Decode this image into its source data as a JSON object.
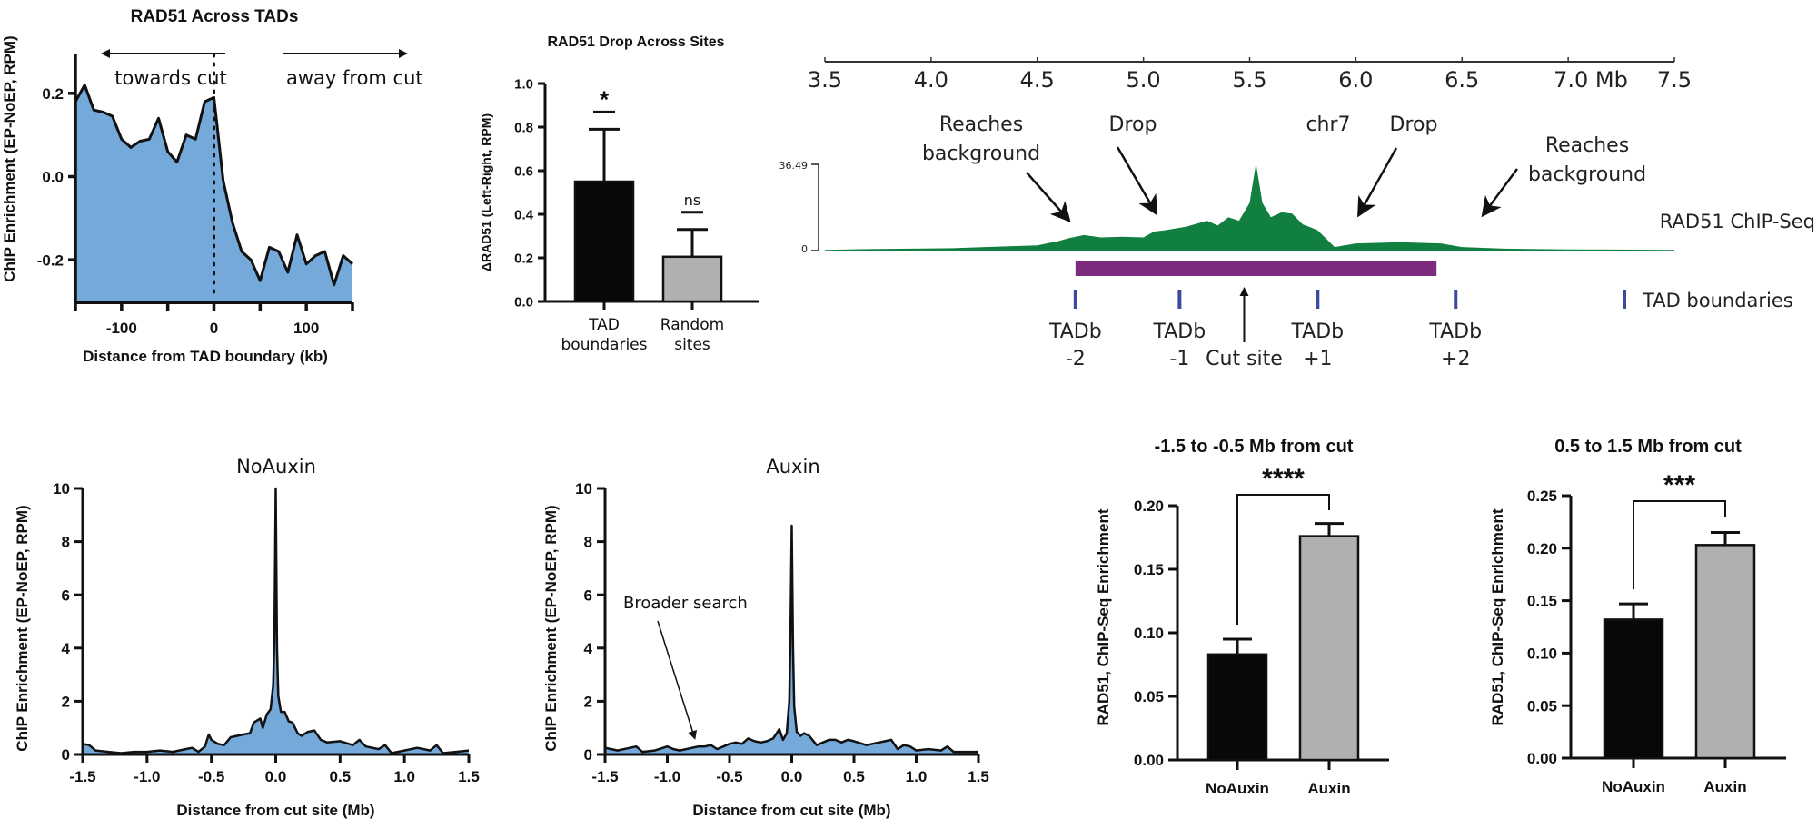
{
  "colors": {
    "area_fill": "#74a9da",
    "line": "#111111",
    "bar_dark": "#060809",
    "bar_gray": "#b0b0b2",
    "track_green": "#117f3f",
    "cut_region": "#7b2a7e",
    "tad_boundary": "#3b4a9c"
  },
  "chart_data": [
    {
      "id": "tad_profile",
      "type": "area",
      "title": "RAD51 Across TADs",
      "xlabel": "Distance from TAD boundary (kb)",
      "ylabel": "ChIP Enrichment (EP-NoEP, RPM)",
      "xlim": [
        -150,
        150
      ],
      "ylim": [
        -0.3,
        0.3
      ],
      "xticks": [
        -100,
        0,
        100
      ],
      "xtick_labels": [
        "-100",
        "0",
        "100"
      ],
      "yticks": [
        -0.2,
        0.0,
        0.2
      ],
      "ytick_labels": [
        "-0.2",
        "0.0",
        "0.2"
      ],
      "annotations": {
        "left_arrow": "towards cut",
        "right_arrow": "away from cut",
        "vline_x": 0
      },
      "x": [
        -150,
        -140,
        -130,
        -120,
        -110,
        -100,
        -90,
        -80,
        -70,
        -60,
        -50,
        -40,
        -30,
        -20,
        -10,
        0,
        10,
        20,
        30,
        40,
        50,
        60,
        70,
        80,
        90,
        100,
        110,
        120,
        130,
        140,
        150
      ],
      "y": [
        0.18,
        0.22,
        0.16,
        0.155,
        0.145,
        0.09,
        0.07,
        0.085,
        0.09,
        0.14,
        0.06,
        0.035,
        0.1,
        0.09,
        0.18,
        0.19,
        -0.01,
        -0.11,
        -0.18,
        -0.2,
        -0.25,
        -0.17,
        -0.18,
        -0.23,
        -0.14,
        -0.21,
        -0.19,
        -0.18,
        -0.26,
        -0.19,
        -0.21
      ]
    },
    {
      "id": "drop_across_sites",
      "type": "bar",
      "title": "RAD51 Drop Across Sites",
      "ylabel": "ΔRAD51 (Left-Right, RPM)",
      "ylim": [
        0,
        1.0
      ],
      "yticks": [
        0,
        0.2,
        0.4,
        0.6,
        0.8,
        1.0
      ],
      "ytick_labels": [
        "0.0",
        "0.2",
        "0.4",
        "0.6",
        "0.8",
        "1.0"
      ],
      "categories": [
        "TAD boundaries",
        "Random sites"
      ],
      "category_lines": [
        [
          "TAD",
          "boundaries"
        ],
        [
          "Random",
          "sites"
        ]
      ],
      "values": [
        0.55,
        0.205
      ],
      "errors": [
        0.24,
        0.125
      ],
      "significance": [
        "*",
        "ns"
      ]
    },
    {
      "id": "genome_track",
      "type": "area",
      "title": "chr7",
      "track_label": "RAD51 ChIP-Seq",
      "track_range_labels": [
        "36.49",
        "0"
      ],
      "ylim": [
        0,
        36.49
      ],
      "xlim": [
        3.5,
        7.5
      ],
      "xtick_labels": [
        "3.5",
        "4.0",
        "4.5",
        "5.0",
        "5.5",
        "6.0",
        "6.5",
        "7.0 Mb",
        "7.5"
      ],
      "xticks": [
        3.5,
        4.0,
        4.5,
        5.0,
        5.5,
        6.0,
        6.5,
        7.0,
        7.5
      ],
      "x": [
        3.5,
        3.7,
        3.9,
        4.1,
        4.3,
        4.5,
        4.6,
        4.65,
        4.72,
        4.8,
        4.9,
        5.0,
        5.05,
        5.1,
        5.2,
        5.3,
        5.35,
        5.4,
        5.45,
        5.5,
        5.53,
        5.56,
        5.6,
        5.65,
        5.7,
        5.75,
        5.78,
        5.82,
        5.86,
        5.9,
        6.0,
        6.2,
        6.4,
        6.5,
        6.7,
        7.0,
        7.5
      ],
      "y": [
        0.3,
        0.6,
        0.8,
        1.0,
        1.6,
        2.2,
        4.0,
        5.2,
        6.5,
        5.5,
        5.8,
        5.5,
        8.0,
        8.5,
        10.0,
        12.5,
        10.5,
        14.0,
        12.5,
        20.0,
        36.49,
        20.0,
        14.0,
        16.0,
        15.5,
        11.0,
        10.0,
        8.5,
        5.0,
        1.5,
        3.0,
        3.5,
        3.0,
        1.5,
        0.8,
        0.5,
        0.3
      ],
      "annotations": [
        {
          "text": [
            "Reaches",
            "background"
          ],
          "side": "left"
        },
        {
          "text": [
            "Drop"
          ],
          "side": "left"
        },
        {
          "text": [
            "Drop"
          ],
          "side": "right"
        },
        {
          "text": [
            "Reaches",
            "background"
          ],
          "side": "right"
        }
      ],
      "cut_region_mb": [
        4.68,
        6.38
      ],
      "cut_site_label": "Cut site",
      "cut_site_mb": 5.5,
      "tad_boundaries": [
        {
          "mb": 4.68,
          "label": "TADb",
          "index": "-2"
        },
        {
          "mb": 5.17,
          "label": "TADb",
          "index": "-1"
        },
        {
          "mb": 5.82,
          "label": "TADb",
          "index": "+1"
        },
        {
          "mb": 6.47,
          "label": "TADb",
          "index": "+2"
        }
      ],
      "legend": "TAD boundaries"
    },
    {
      "id": "noauxin_profile",
      "type": "area",
      "title": "NoAuxin",
      "xlabel": "Distance from cut site (Mb)",
      "ylabel": "ChIP Enrichment (EP-NoEP, RPM)",
      "xlim": [
        -1.5,
        1.5
      ],
      "ylim": [
        0,
        10
      ],
      "xticks": [
        -1.5,
        -1.0,
        -0.5,
        0.0,
        0.5,
        1.0,
        1.5
      ],
      "xtick_labels": [
        "-1.5",
        "-1.0",
        "-0.5",
        "0.0",
        "0.5",
        "1.0",
        "1.5"
      ],
      "yticks": [
        0,
        2,
        4,
        6,
        8,
        10
      ],
      "ytick_labels": [
        "0",
        "2",
        "4",
        "6",
        "8",
        "10"
      ],
      "x": [
        -1.5,
        -1.45,
        -1.4,
        -1.3,
        -1.2,
        -1.1,
        -1.0,
        -0.9,
        -0.8,
        -0.7,
        -0.65,
        -0.6,
        -0.55,
        -0.52,
        -0.5,
        -0.45,
        -0.4,
        -0.35,
        -0.3,
        -0.25,
        -0.2,
        -0.17,
        -0.12,
        -0.1,
        -0.07,
        -0.04,
        -0.02,
        -0.01,
        0.0,
        0.01,
        0.02,
        0.04,
        0.07,
        0.1,
        0.13,
        0.17,
        0.2,
        0.25,
        0.3,
        0.35,
        0.4,
        0.5,
        0.6,
        0.65,
        0.7,
        0.8,
        0.85,
        0.9,
        1.0,
        1.1,
        1.2,
        1.25,
        1.3,
        1.4,
        1.5
      ],
      "y": [
        0.4,
        0.35,
        0.15,
        0.1,
        0.05,
        0.1,
        0.1,
        0.15,
        0.1,
        0.2,
        0.25,
        0.1,
        0.3,
        0.75,
        0.55,
        0.4,
        0.35,
        0.65,
        0.7,
        0.75,
        0.8,
        1.2,
        1.35,
        1.0,
        1.5,
        1.7,
        2.6,
        4.5,
        10.0,
        4.0,
        2.2,
        1.6,
        1.6,
        1.25,
        1.2,
        0.8,
        0.7,
        0.85,
        0.9,
        0.55,
        0.45,
        0.5,
        0.35,
        0.55,
        0.3,
        0.2,
        0.35,
        0.05,
        0.15,
        0.25,
        0.15,
        0.35,
        0.05,
        0.1,
        0.15
      ]
    },
    {
      "id": "auxin_profile",
      "type": "area",
      "title": "Auxin",
      "xlabel": "Distance from cut site (Mb)",
      "ylabel": "ChIP Enrichment (EP-NoEP, RPM)",
      "xlim": [
        -1.5,
        1.5
      ],
      "ylim": [
        0,
        10
      ],
      "xticks": [
        -1.5,
        -1.0,
        -0.5,
        0.0,
        0.5,
        1.0,
        1.5
      ],
      "xtick_labels": [
        "-1.5",
        "-1.0",
        "-0.5",
        "0.0",
        "0.5",
        "1.0",
        "1.5"
      ],
      "yticks": [
        0,
        2,
        4,
        6,
        8,
        10
      ],
      "ytick_labels": [
        "0",
        "2",
        "4",
        "6",
        "8",
        "10"
      ],
      "annotation": "Broader search",
      "annotation_target_x": -0.78,
      "x": [
        -1.5,
        -1.45,
        -1.4,
        -1.3,
        -1.25,
        -1.2,
        -1.1,
        -1.0,
        -0.95,
        -0.9,
        -0.8,
        -0.75,
        -0.7,
        -0.65,
        -0.6,
        -0.5,
        -0.45,
        -0.4,
        -0.35,
        -0.3,
        -0.25,
        -0.2,
        -0.15,
        -0.1,
        -0.07,
        -0.04,
        -0.02,
        -0.01,
        0.0,
        0.01,
        0.02,
        0.04,
        0.07,
        0.1,
        0.14,
        0.2,
        0.25,
        0.3,
        0.35,
        0.4,
        0.45,
        0.5,
        0.6,
        0.7,
        0.75,
        0.8,
        0.85,
        0.9,
        0.95,
        1.0,
        1.1,
        1.2,
        1.25,
        1.3,
        1.4,
        1.5
      ],
      "y": [
        0.25,
        0.2,
        0.15,
        0.25,
        0.3,
        0.1,
        0.15,
        0.3,
        0.2,
        0.15,
        0.25,
        0.3,
        0.3,
        0.35,
        0.2,
        0.4,
        0.45,
        0.4,
        0.6,
        0.5,
        0.45,
        0.5,
        0.6,
        0.95,
        0.55,
        0.8,
        2.0,
        4.5,
        8.6,
        4.0,
        1.8,
        0.85,
        0.7,
        0.8,
        0.7,
        0.35,
        0.45,
        0.55,
        0.55,
        0.45,
        0.55,
        0.5,
        0.35,
        0.45,
        0.5,
        0.55,
        0.2,
        0.35,
        0.3,
        0.15,
        0.2,
        0.15,
        0.3,
        0.1,
        0.1,
        0.1
      ]
    },
    {
      "id": "left_region_bars",
      "type": "bar",
      "title": "-1.5 to -0.5 Mb from cut",
      "ylabel": "RAD51, ChIP-Seq Enrichment",
      "ylim": [
        0,
        0.2
      ],
      "yticks": [
        0,
        0.05,
        0.1,
        0.15,
        0.2
      ],
      "ytick_labels": [
        "0.00",
        "0.05",
        "0.10",
        "0.15",
        "0.20"
      ],
      "categories": [
        "NoAuxin",
        "Auxin"
      ],
      "values": [
        0.083,
        0.176
      ],
      "errors": [
        0.012,
        0.01
      ],
      "significance": "****"
    },
    {
      "id": "right_region_bars",
      "type": "bar",
      "title": "0.5 to 1.5 Mb from cut",
      "ylabel": "RAD51, ChIP-Seq Enrichment",
      "ylim": [
        0,
        0.25
      ],
      "yticks": [
        0,
        0.05,
        0.1,
        0.15,
        0.2,
        0.25
      ],
      "ytick_labels": [
        "0.00",
        "0.05",
        "0.10",
        "0.15",
        "0.20",
        "0.25"
      ],
      "categories": [
        "NoAuxin",
        "Auxin"
      ],
      "values": [
        0.132,
        0.203
      ],
      "errors": [
        0.015,
        0.012
      ],
      "significance": "***"
    }
  ]
}
